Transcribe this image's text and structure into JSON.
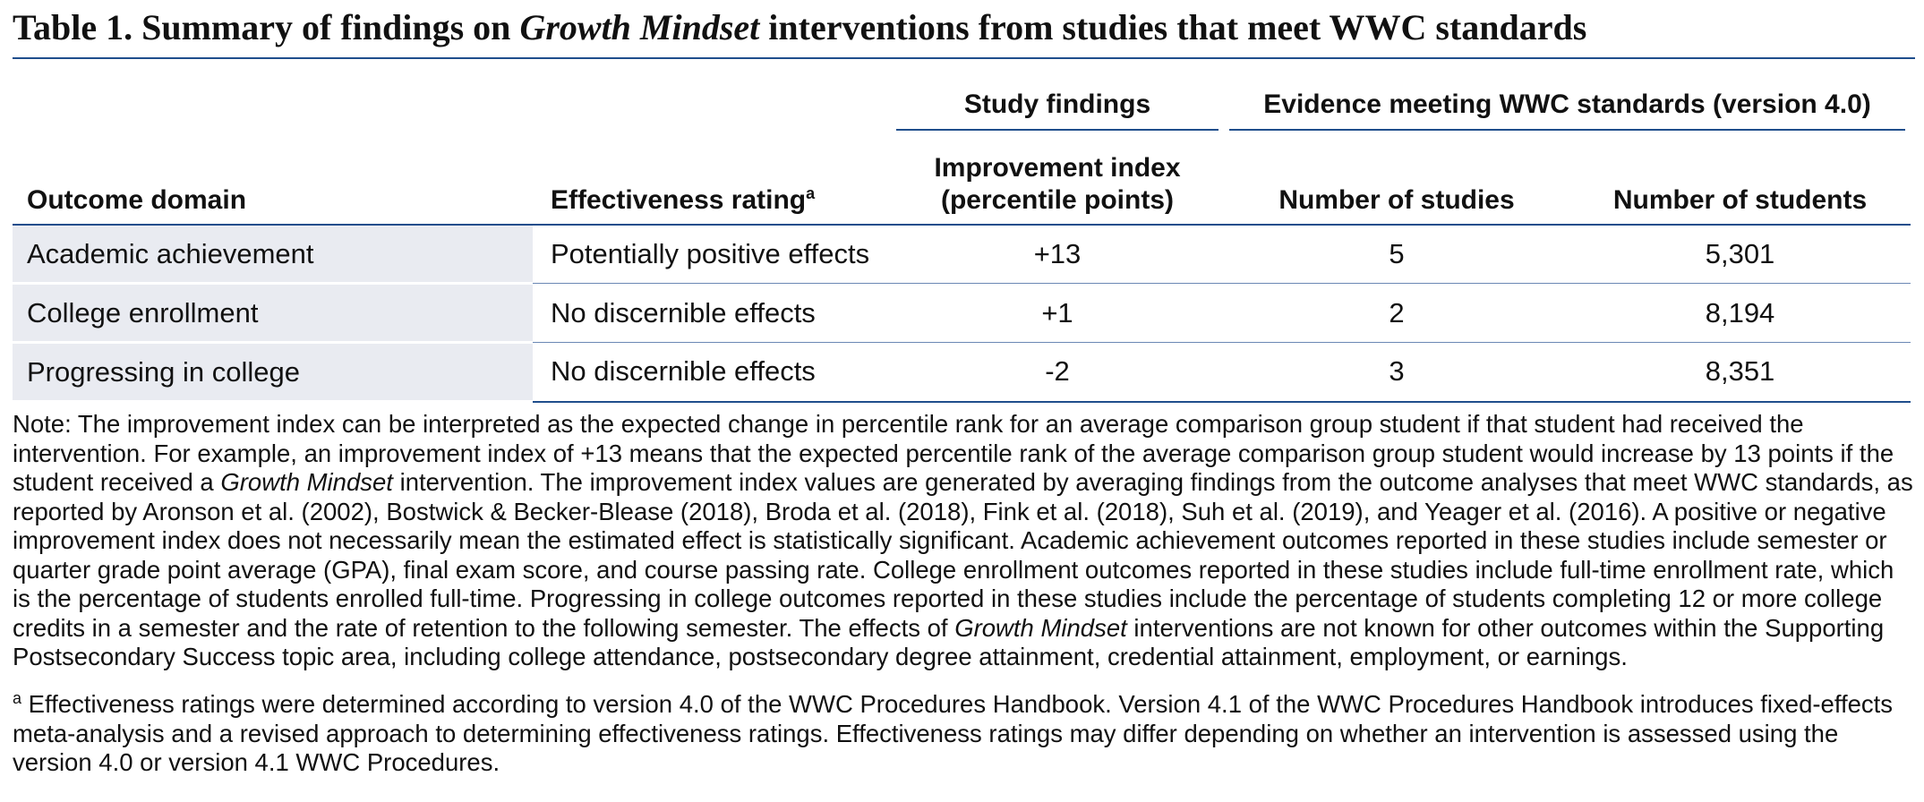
{
  "title": [
    {
      "text": "Table 1. Summary of findings on "
    },
    {
      "text": "Growth Mindset",
      "italic": true
    },
    {
      "text": " interventions from studies that meet WWC standards"
    }
  ],
  "table": {
    "group_headers": [
      "Study findings",
      "Evidence meeting WWC standards (version 4.0)"
    ],
    "columns": [
      {
        "lines": [
          "Outcome domain"
        ]
      },
      {
        "lines": [
          "Effectiveness rating"
        ],
        "superscript": "a"
      },
      {
        "lines": [
          "Improvement index",
          "(percentile points)"
        ]
      },
      {
        "lines": [
          "Number of studies"
        ]
      },
      {
        "lines": [
          "Number of students"
        ]
      }
    ],
    "rows": [
      [
        "Academic achievement",
        "Potentially positive effects",
        "+13",
        "5",
        "5,301"
      ],
      [
        "College enrollment",
        "No discernible effects",
        "+1",
        "2",
        "8,194"
      ],
      [
        "Progressing in college",
        "No discernible effects",
        "-2",
        "3",
        "8,351"
      ]
    ]
  },
  "note": [
    {
      "text": "Note: The improvement index can be interpreted as the expected change in percentile rank for an average comparison group student if that student had received the intervention. For example, an improvement index of +13 means that the expected percentile rank of the average comparison group student would increase by 13 points if the student received a "
    },
    {
      "text": "Growth Mindset",
      "italic": true
    },
    {
      "text": " intervention. The improvement index values are generated by averaging findings from the outcome analyses that meet WWC standards, as reported by Aronson et al. (2002), Bostwick & Becker-Blease (2018), Broda et al. (2018), Fink et al. (2018), Suh et al. (2019), and Yeager et al. (2016). A positive or negative improvement index does not necessarily mean the estimated effect is statistically significant. Academic achievement outcomes reported in these studies include semester or quarter grade point average (GPA), final exam score, and course passing rate. College enrollment outcomes reported in these studies include full-time enrollment rate, which is the percentage of students enrolled full-time. Progressing in college outcomes reported in these studies include the percentage of students completing 12 or more college credits in a semester and the rate of retention to the following semester. The effects of "
    },
    {
      "text": "Growth Mindset",
      "italic": true
    },
    {
      "text": " interventions are not known for other outcomes within the Supporting Postsecondary Success topic area, including college attendance, postsecondary degree attainment, credential attainment, employment, or earnings."
    }
  ],
  "footnote": {
    "marker": "a",
    "text": " Effectiveness ratings were determined according to version 4.0 of the WWC Procedures Handbook. Version 4.1 of the WWC Procedures Handbook introduces fixed-effects meta-analysis and a revised approach to determining effectiveness ratings. Effectiveness ratings may differ depending on whether an intervention is assessed using the version 4.0 or version 4.1 WWC Procedures."
  }
}
